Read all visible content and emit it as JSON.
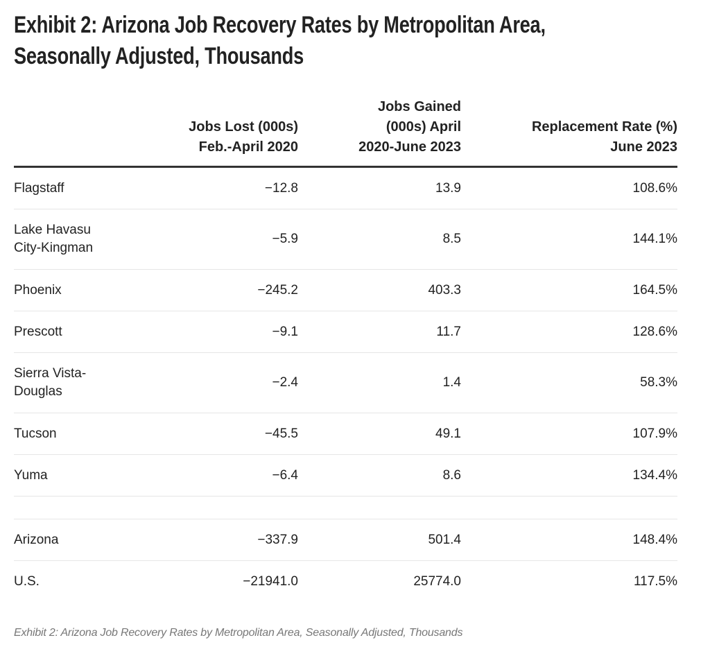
{
  "title": "Exhibit 2: Arizona Job Recovery Rates by Metropolitan Area, Seasonally Adjusted, Thousands",
  "title_lines": [
    "Exhibit 2: Arizona Job Recovery Rates by Metropolitan Area,",
    "Seasonally Adjusted, Thousands"
  ],
  "caption": "Exhibit 2: Arizona Job Recovery Rates by Metropolitan Area, Seasonally Adjusted, Thousands",
  "chart_data": {
    "type": "table",
    "columns": [
      "",
      "Jobs Lost (000s) Feb.-April 2020",
      "Jobs Gained (000s) April 2020-June 2023",
      "Replacement Rate (%) June 2023"
    ],
    "rows": [
      {
        "area": "Flagstaff",
        "lost": "−12.8",
        "gained": "13.9",
        "rate": "108.6%"
      },
      {
        "area": "Lake Havasu City-Kingman",
        "lost": "−5.9",
        "gained": "8.5",
        "rate": "144.1%"
      },
      {
        "area": "Phoenix",
        "lost": "−245.2",
        "gained": "403.3",
        "rate": "164.5%"
      },
      {
        "area": "Prescott",
        "lost": "−9.1",
        "gained": "11.7",
        "rate": "128.6%"
      },
      {
        "area": "Sierra Vista-Douglas",
        "lost": "−2.4",
        "gained": "1.4",
        "rate": "58.3%"
      },
      {
        "area": "Tucson",
        "lost": "−45.5",
        "gained": "49.1",
        "rate": "107.9%"
      },
      {
        "area": "Yuma",
        "lost": "−6.4",
        "gained": "8.6",
        "rate": "134.4%"
      },
      {
        "area": "",
        "lost": "",
        "gained": "",
        "rate": ""
      },
      {
        "area": "Arizona",
        "lost": "−337.9",
        "gained": "501.4",
        "rate": "148.4%"
      },
      {
        "area": "U.S.",
        "lost": "−21941.0",
        "gained": "25774.0",
        "rate": "117.5%"
      }
    ]
  }
}
